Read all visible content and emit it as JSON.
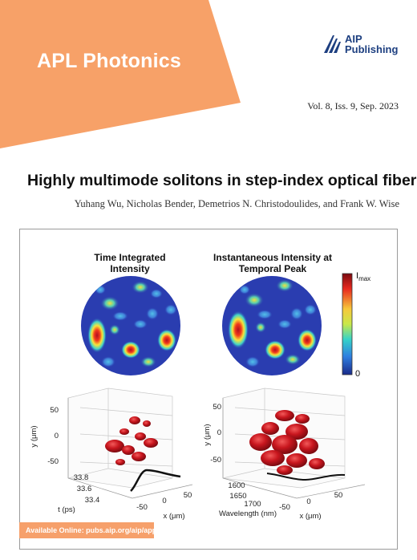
{
  "cover": {
    "journal": "APL Photonics",
    "publisher_line1": "AIP",
    "publisher_line2": "Publishing",
    "issue": "Vol. 8, Iss. 9, Sep. 2023",
    "title": "Highly multimode solitons in step-index optical fiber",
    "authors": "Yuhang Wu, Nicholas Bender, Demetrios N. Christodoulides, and Frank W. Wise",
    "availability": "Available Online: pubs.aip.org/aip/app"
  },
  "figure": {
    "panel_left_title_line1": "Time Integrated",
    "panel_left_title_line2": "Intensity",
    "panel_right_title_line1": "Instantaneous Intensity at",
    "panel_right_title_line2": "Temporal Peak",
    "colorbar_max_label_base": "I",
    "colorbar_max_label_sub": "max",
    "colorbar_min_label": "0",
    "left_plot": {
      "y_axis_label": "y (μm)",
      "y_ticks": [
        "50",
        "0",
        "-50"
      ],
      "t_axis_label": "t (ps)",
      "t_ticks": [
        "33.8",
        "33.6",
        "33.4"
      ],
      "x_axis_label": "x (μm)",
      "x_ticks": [
        "-50",
        "0",
        "50"
      ]
    },
    "right_plot": {
      "y_axis_label": "y (μm)",
      "y_ticks": [
        "50",
        "0",
        "-50"
      ],
      "w_axis_label": "Wavelength (nm)",
      "w_ticks": [
        "1600",
        "1650",
        "1700"
      ],
      "x_axis_label": "x (μm)",
      "x_ticks": [
        "-50",
        "0",
        "50"
      ]
    }
  },
  "colors": {
    "banner_orange": "#f7a168",
    "publisher_blue": "#1d3f80",
    "heatmap_background": "#2a3db0",
    "blob_red": "#c0171f"
  }
}
